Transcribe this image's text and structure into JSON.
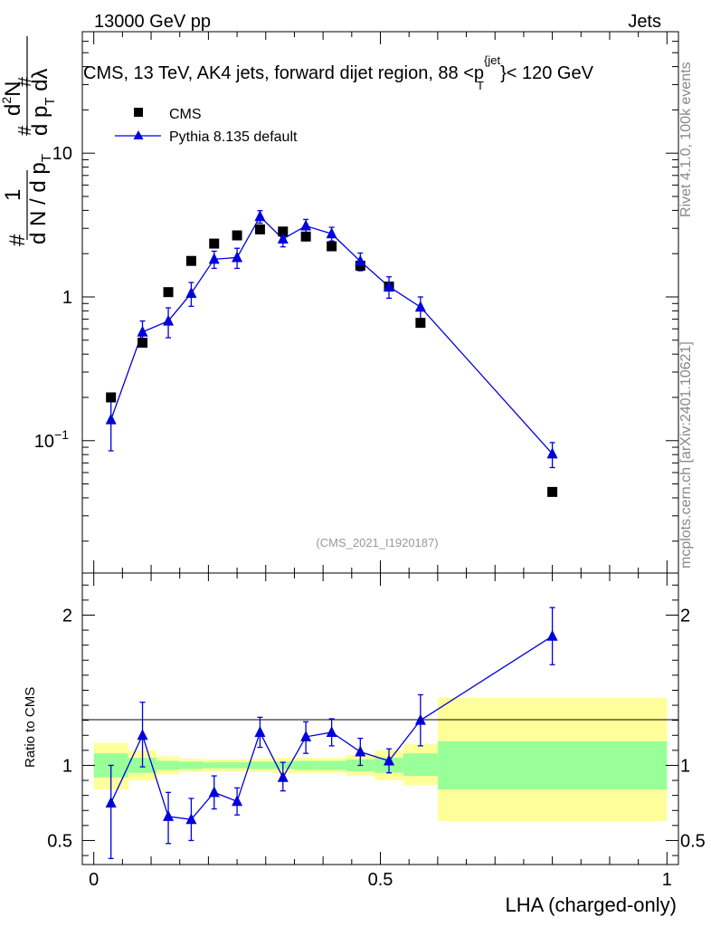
{
  "header": {
    "left": "13000 GeV pp",
    "right": "Jets"
  },
  "side": {
    "rivet": "Rivet 4.1.0,  100k events",
    "mcplots": "mcplots.cern.ch [arXiv:2401.10621]"
  },
  "colors": {
    "data": "#000000",
    "mc": "#0000dd",
    "band_outer": "#ffff99",
    "band_inner": "#99ff99",
    "watermark": "#999999"
  },
  "chart_data": [
    {
      "type": "scatter",
      "panel": "main",
      "title": "CMS, 13 TeV, AK4 jets, forward dijet region, 88 <p_T^{jet}< 120 GeV",
      "title_parts": {
        "prefix": "CMS, 13 TeV, AK4 jets, forward dijet region, 88 <",
        "p": "p",
        "sub": "T",
        "sup": "{jet",
        "suffix": "}< 120 GeV"
      },
      "ylabel": "1/dN/dpT  d²N/dpT dλ",
      "ylabel_parts": {
        "frac_num": "1",
        "frac_den": "d N / d p",
        "num_d": "d",
        "num_sup": "2",
        "num_N": "N",
        "den": "d p",
        "den_tail": " dλ",
        "hash": "#",
        "sub": "T"
      },
      "yscale": "log",
      "ylim": [
        0.012,
        70
      ],
      "xlim": [
        -0.02,
        1.02
      ],
      "yticks": [
        {
          "value": 0.1,
          "base": "10",
          "exp": "−1"
        },
        {
          "value": 1,
          "label": "1"
        },
        {
          "value": 10,
          "label": "10"
        }
      ],
      "watermark": "(CMS_2021_I1920187)",
      "legend_position": "top-left",
      "series": [
        {
          "name": "CMS",
          "marker": "square",
          "x": [
            0.03,
            0.085,
            0.13,
            0.17,
            0.21,
            0.25,
            0.29,
            0.33,
            0.37,
            0.415,
            0.465,
            0.515,
            0.57,
            0.8
          ],
          "y": [
            0.2,
            0.48,
            1.08,
            1.78,
            2.35,
            2.68,
            2.95,
            2.85,
            2.63,
            2.25,
            1.65,
            1.18,
            0.66,
            0.044
          ]
        },
        {
          "name": "Pythia 8.135 default",
          "marker": "triangle",
          "line": true,
          "x": [
            0.03,
            0.085,
            0.13,
            0.17,
            0.21,
            0.25,
            0.29,
            0.33,
            0.37,
            0.415,
            0.465,
            0.515,
            0.57,
            0.8
          ],
          "y": [
            0.14,
            0.57,
            0.68,
            1.06,
            1.83,
            1.88,
            3.62,
            2.53,
            3.12,
            2.75,
            1.77,
            1.18,
            0.85,
            0.081
          ],
          "yerr_low": [
            0.055,
            0.11,
            0.16,
            0.2,
            0.25,
            0.3,
            0.36,
            0.3,
            0.34,
            0.3,
            0.25,
            0.2,
            0.15,
            0.016
          ],
          "yerr_high": [
            0.055,
            0.11,
            0.16,
            0.2,
            0.25,
            0.3,
            0.36,
            0.3,
            0.34,
            0.3,
            0.25,
            0.2,
            0.15,
            0.016
          ]
        }
      ]
    },
    {
      "type": "line",
      "panel": "ratio",
      "xlabel": "LHA (charged-only)",
      "ylabel": "Ratio to CMS",
      "xlim": [
        -0.02,
        1.02
      ],
      "ylim": [
        0.34,
        2.28
      ],
      "yticks": [
        {
          "value": 0.5,
          "label": "0.5"
        },
        {
          "value": 1,
          "label": "1"
        },
        {
          "value": 2,
          "label": "2"
        }
      ],
      "xticks": [
        {
          "value": 0,
          "label": "0"
        },
        {
          "value": 0.5,
          "label": "0.5"
        },
        {
          "value": 1,
          "label": "1"
        }
      ],
      "bands": [
        {
          "x0": 0.0,
          "x1": 0.06,
          "outer": [
            0.84,
            1.15
          ],
          "inner": [
            0.92,
            1.08
          ]
        },
        {
          "x0": 0.06,
          "x1": 0.11,
          "outer": [
            0.9,
            1.1
          ],
          "inner": [
            0.95,
            1.05
          ]
        },
        {
          "x0": 0.11,
          "x1": 0.15,
          "outer": [
            0.94,
            1.06
          ],
          "inner": [
            0.97,
            1.03
          ]
        },
        {
          "x0": 0.15,
          "x1": 0.19,
          "outer": [
            0.955,
            1.045
          ],
          "inner": [
            0.975,
            1.025
          ]
        },
        {
          "x0": 0.19,
          "x1": 0.27,
          "outer": [
            0.96,
            1.04
          ],
          "inner": [
            0.98,
            1.02
          ]
        },
        {
          "x0": 0.27,
          "x1": 0.31,
          "outer": [
            0.955,
            1.045
          ],
          "inner": [
            0.975,
            1.025
          ]
        },
        {
          "x0": 0.31,
          "x1": 0.35,
          "outer": [
            0.95,
            1.05
          ],
          "inner": [
            0.975,
            1.025
          ]
        },
        {
          "x0": 0.35,
          "x1": 0.39,
          "outer": [
            0.95,
            1.05
          ],
          "inner": [
            0.97,
            1.03
          ]
        },
        {
          "x0": 0.39,
          "x1": 0.44,
          "outer": [
            0.95,
            1.05
          ],
          "inner": [
            0.97,
            1.03
          ]
        },
        {
          "x0": 0.44,
          "x1": 0.49,
          "outer": [
            0.93,
            1.07
          ],
          "inner": [
            0.96,
            1.04
          ]
        },
        {
          "x0": 0.49,
          "x1": 0.54,
          "outer": [
            0.9,
            1.1
          ],
          "inner": [
            0.95,
            1.05
          ]
        },
        {
          "x0": 0.54,
          "x1": 0.6,
          "outer": [
            0.87,
            1.14
          ],
          "inner": [
            0.93,
            1.08
          ]
        },
        {
          "x0": 0.6,
          "x1": 1.0,
          "outer": [
            0.63,
            1.45
          ],
          "inner": [
            0.84,
            1.16
          ]
        }
      ],
      "series": [
        {
          "name": "Pythia 8.135 default",
          "marker": "triangle",
          "x": [
            0.03,
            0.085,
            0.13,
            0.17,
            0.21,
            0.25,
            0.29,
            0.33,
            0.37,
            0.415,
            0.465,
            0.515,
            0.57,
            0.8
          ],
          "y": [
            0.75,
            1.2,
            0.66,
            0.64,
            0.82,
            0.76,
            1.22,
            0.92,
            1.19,
            1.22,
            1.09,
            1.03,
            1.3,
            1.86
          ],
          "yerr_low": [
            0.37,
            0.21,
            0.18,
            0.14,
            0.11,
            0.09,
            0.1,
            0.09,
            0.11,
            0.09,
            0.09,
            0.08,
            0.17,
            0.19
          ],
          "yerr_high": [
            0.25,
            0.22,
            0.16,
            0.14,
            0.11,
            0.09,
            0.1,
            0.1,
            0.1,
            0.09,
            0.09,
            0.08,
            0.17,
            0.19
          ]
        }
      ]
    }
  ]
}
